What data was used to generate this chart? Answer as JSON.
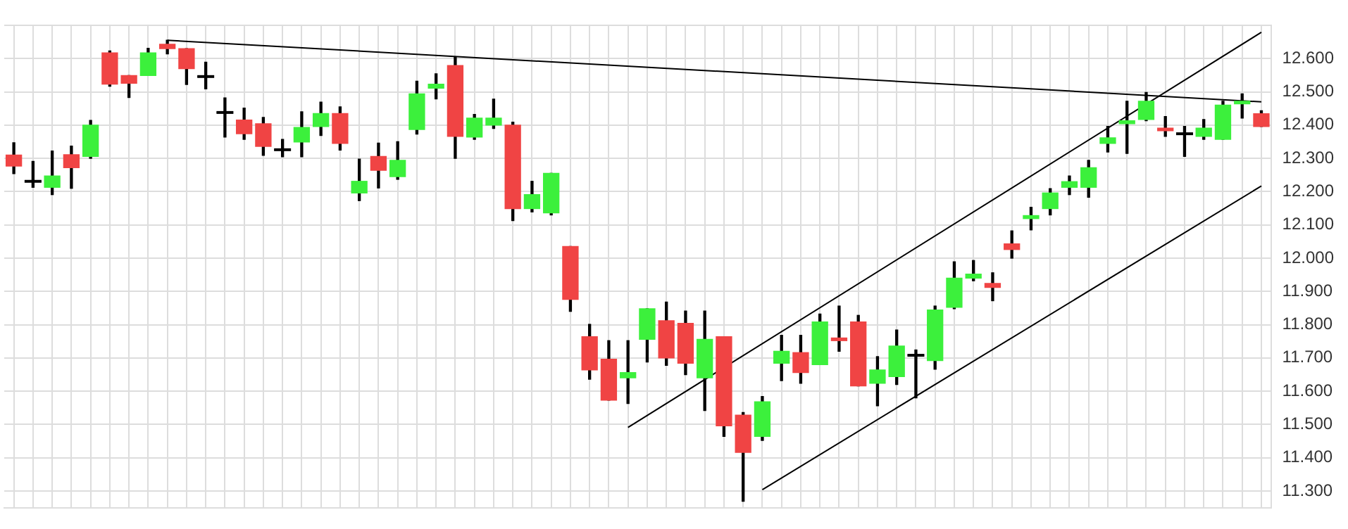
{
  "chart_data": {
    "type": "candlestick",
    "categories": [
      null,
      null,
      null,
      null,
      null,
      null,
      null,
      null,
      null,
      null,
      null,
      null,
      null,
      null,
      null,
      null,
      null,
      null,
      null,
      null,
      null,
      null,
      null,
      null,
      null,
      null,
      null,
      null,
      null,
      null,
      null,
      null,
      null,
      null,
      null,
      null,
      null,
      null,
      null,
      null,
      null,
      null,
      null,
      null,
      null,
      null,
      null,
      null,
      null,
      null,
      null,
      null,
      null,
      null,
      null,
      null,
      null,
      null,
      null,
      null,
      null,
      null,
      null,
      null,
      null,
      null
    ],
    "ohlc": [
      [
        12310,
        12347,
        12254,
        12277
      ],
      [
        12231,
        12291,
        12213,
        12231
      ],
      [
        12213,
        12322,
        12191,
        12247
      ],
      [
        12311,
        12337,
        12210,
        12272
      ],
      [
        12306,
        12414,
        12300,
        12400
      ],
      [
        12617,
        12623,
        12517,
        12523
      ],
      [
        12549,
        12549,
        12483,
        12526
      ],
      [
        12549,
        12631,
        12549,
        12617
      ],
      [
        12643,
        12655,
        12614,
        12630
      ],
      [
        12630,
        12630,
        12522,
        12570
      ],
      [
        12546,
        12589,
        12509,
        12546
      ],
      [
        12438,
        12482,
        12364,
        12438
      ],
      [
        12415,
        12451,
        12357,
        12374
      ],
      [
        12404,
        12423,
        12309,
        12336
      ],
      [
        12326,
        12357,
        12305,
        12326
      ],
      [
        12349,
        12440,
        12305,
        12393
      ],
      [
        12396,
        12469,
        12369,
        12435
      ],
      [
        12435,
        12455,
        12325,
        12345
      ],
      [
        12196,
        12298,
        12173,
        12231
      ],
      [
        12306,
        12346,
        12211,
        12264
      ],
      [
        12245,
        12350,
        12237,
        12294
      ],
      [
        12387,
        12532,
        12373,
        12494
      ],
      [
        12511,
        12554,
        12479,
        12523
      ],
      [
        12579,
        12604,
        12300,
        12366
      ],
      [
        12364,
        12432,
        12357,
        12421
      ],
      [
        12400,
        12478,
        12390,
        12421
      ],
      [
        12400,
        12409,
        12113,
        12149
      ],
      [
        12149,
        12231,
        12139,
        12191
      ],
      [
        12136,
        12255,
        12130,
        12255
      ],
      [
        12035,
        12035,
        11840,
        11876
      ],
      [
        11764,
        11801,
        11636,
        11664
      ],
      [
        11696,
        11752,
        11573,
        11573
      ],
      [
        11640,
        11752,
        11563,
        11656
      ],
      [
        11756,
        11848,
        11688,
        11848
      ],
      [
        11812,
        11868,
        11678,
        11700
      ],
      [
        11804,
        11841,
        11650,
        11684
      ],
      [
        11640,
        11841,
        11542,
        11756
      ],
      [
        11764,
        11764,
        11464,
        11496
      ],
      [
        11528,
        11536,
        11269,
        11416
      ],
      [
        11464,
        11584,
        11452,
        11568
      ],
      [
        11684,
        11768,
        11632,
        11720
      ],
      [
        11716,
        11768,
        11624,
        11656
      ],
      [
        11680,
        11832,
        11680,
        11808
      ],
      [
        11760,
        11856,
        11720,
        11752
      ],
      [
        11808,
        11828,
        11616,
        11616
      ],
      [
        11624,
        11704,
        11556,
        11664
      ],
      [
        11644,
        11784,
        11620,
        11736
      ],
      [
        11708,
        11724,
        11580,
        11708
      ],
      [
        11692,
        11856,
        11666,
        11844
      ],
      [
        11852,
        11989,
        11848,
        11940
      ],
      [
        11940,
        11993,
        11932,
        11952
      ],
      [
        11924,
        11956,
        11872,
        11912
      ],
      [
        12043,
        12082,
        12000,
        12026
      ],
      [
        12119,
        12153,
        12085,
        12128
      ],
      [
        12149,
        12209,
        12130,
        12196
      ],
      [
        12213,
        12247,
        12191,
        12230
      ],
      [
        12213,
        12294,
        12183,
        12272
      ],
      [
        12345,
        12396,
        12319,
        12362
      ],
      [
        12404,
        12472,
        12315,
        12413
      ],
      [
        12417,
        12498,
        12413,
        12472
      ],
      [
        12391,
        12426,
        12366,
        12383
      ],
      [
        12374,
        12396,
        12306,
        12374
      ],
      [
        12366,
        12417,
        12357,
        12391
      ],
      [
        12357,
        12472,
        12357,
        12460
      ],
      [
        12464,
        12494,
        12421,
        12472
      ],
      [
        12434,
        12443,
        12396,
        12396
      ]
    ],
    "colors": [
      "#f04444",
      "#000000",
      "#3cf03c",
      "#f04444",
      "#3cf03c",
      "#f04444",
      "#f04444",
      "#3cf03c",
      "#f04444",
      "#f04444",
      "#000000",
      "#000000",
      "#f04444",
      "#f04444",
      "#000000",
      "#3cf03c",
      "#3cf03c",
      "#f04444",
      "#3cf03c",
      "#f04444",
      "#3cf03c",
      "#3cf03c",
      "#3cf03c",
      "#f04444",
      "#3cf03c",
      "#3cf03c",
      "#f04444",
      "#3cf03c",
      "#3cf03c",
      "#f04444",
      "#f04444",
      "#f04444",
      "#3cf03c",
      "#3cf03c",
      "#f04444",
      "#f04444",
      "#3cf03c",
      "#f04444",
      "#f04444",
      "#3cf03c",
      "#3cf03c",
      "#f04444",
      "#3cf03c",
      "#f04444",
      "#f04444",
      "#3cf03c",
      "#3cf03c",
      "#000000",
      "#3cf03c",
      "#3cf03c",
      "#3cf03c",
      "#f04444",
      "#f04444",
      "#3cf03c",
      "#3cf03c",
      "#3cf03c",
      "#3cf03c",
      "#3cf03c",
      "#3cf03c",
      "#3cf03c",
      "#f04444",
      "#000000",
      "#3cf03c",
      "#3cf03c",
      "#3cf03c",
      "#f04444"
    ],
    "series": [
      {
        "type": "line",
        "color": "#000000",
        "values": [
          null,
          null,
          null,
          null,
          null,
          null,
          null,
          null,
          12655,
          null,
          null,
          null,
          null,
          null,
          null,
          null,
          null,
          null,
          null,
          null,
          null,
          null,
          null,
          null,
          null,
          null,
          null,
          null,
          null,
          null,
          null,
          null,
          null,
          null,
          null,
          null,
          null,
          null,
          null,
          null,
          null,
          null,
          null,
          null,
          null,
          null,
          null,
          null,
          null,
          null,
          null,
          null,
          null,
          null,
          null,
          null,
          null,
          null,
          null,
          null,
          null,
          null,
          null,
          null,
          null,
          12470
        ]
      },
      {
        "type": "line",
        "color": "#000000",
        "values": [
          null,
          null,
          null,
          null,
          null,
          null,
          null,
          null,
          null,
          null,
          null,
          null,
          null,
          null,
          null,
          null,
          null,
          null,
          null,
          null,
          null,
          null,
          null,
          null,
          null,
          null,
          null,
          null,
          null,
          null,
          null,
          null,
          11491,
          null,
          null,
          null,
          null,
          null,
          null,
          null,
          null,
          null,
          null,
          null,
          null,
          null,
          null,
          null,
          null,
          null,
          null,
          null,
          null,
          null,
          null,
          null,
          null,
          null,
          null,
          null,
          null,
          null,
          null,
          null,
          null,
          12679
        ]
      },
      {
        "type": "line",
        "color": "#000000",
        "values": [
          null,
          null,
          null,
          null,
          null,
          null,
          null,
          null,
          null,
          null,
          null,
          null,
          null,
          null,
          null,
          null,
          null,
          null,
          null,
          null,
          null,
          null,
          null,
          null,
          null,
          null,
          null,
          null,
          null,
          null,
          null,
          null,
          null,
          null,
          null,
          null,
          null,
          null,
          null,
          11304,
          null,
          null,
          null,
          null,
          null,
          null,
          null,
          null,
          null,
          null,
          null,
          null,
          null,
          null,
          null,
          null,
          null,
          null,
          null,
          null,
          null,
          null,
          null,
          null,
          null,
          12217
        ]
      }
    ],
    "ylim": [
      11250,
      12700
    ],
    "yticks": [
      {
        "value": 11300,
        "label": "11.300"
      },
      {
        "value": 11400,
        "label": "11.400"
      },
      {
        "value": 11500,
        "label": "11.500"
      },
      {
        "value": 11600,
        "label": "11.600"
      },
      {
        "value": 11700,
        "label": "11.700"
      },
      {
        "value": 11800,
        "label": "11.800"
      },
      {
        "value": 11900,
        "label": "11.900"
      },
      {
        "value": 12000,
        "label": "12.000"
      },
      {
        "value": 12100,
        "label": "12.100"
      },
      {
        "value": 12200,
        "label": "12.200"
      },
      {
        "value": 12300,
        "label": "12.300"
      },
      {
        "value": 12400,
        "label": "12.400"
      },
      {
        "value": 12500,
        "label": "12.500"
      },
      {
        "value": 12600,
        "label": "12.600"
      },
      {
        "value": 12700,
        "label": null
      }
    ],
    "grid": true,
    "tick_labels": "y"
  }
}
